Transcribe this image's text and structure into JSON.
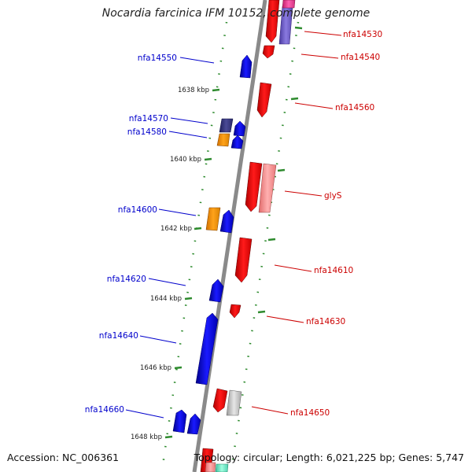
{
  "title": "Nocardia farcinica IFM 10152, complete genome",
  "accession": "Accession: NC_006361",
  "topology": "Topology: circular; Length: 6,021,225 bp; Genes: 5,747",
  "colors": {
    "backbone": "#888888",
    "tick": "#2e8b2e",
    "forward_label": "#0000cc",
    "reverse_label": "#cc0000"
  },
  "ticks": [
    {
      "label": "1638 kbp"
    },
    {
      "label": "1640 kbp"
    },
    {
      "label": "1642 kbp"
    },
    {
      "label": "1644 kbp"
    },
    {
      "label": "1646 kbp"
    },
    {
      "label": "1648 kbp"
    }
  ],
  "gene_labels": {
    "forward": [
      "nfa14550",
      "nfa14570",
      "nfa14580",
      "nfa14600",
      "nfa14620",
      "nfa14640",
      "nfa14660"
    ],
    "reverse": [
      "nfa14530",
      "nfa14540",
      "nfa14560",
      "glyS",
      "nfa14610",
      "nfa14630",
      "nfa14650"
    ]
  }
}
